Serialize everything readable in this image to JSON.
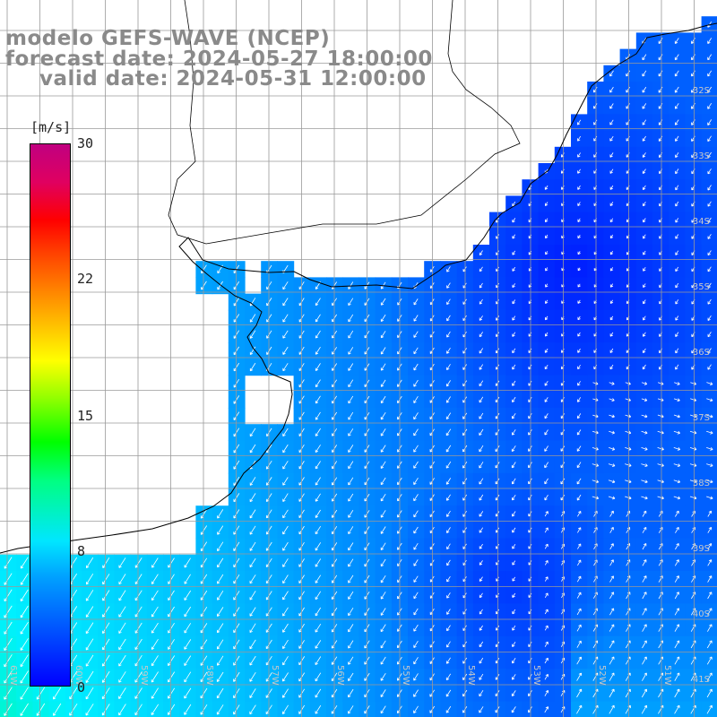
{
  "title": {
    "line1": "modelo GEFS-WAVE (NCEP)",
    "line2": "forecast date: 2024-05-27 18:00:00",
    "line3": "valid date: 2024-05-31 12:00:00"
  },
  "colorbar": {
    "unit": "[m/s]",
    "ticks": [
      "30",
      "22",
      "15",
      "8",
      "0"
    ],
    "tick_values": [
      30,
      22,
      15,
      8,
      0
    ],
    "min": 0,
    "max": 30
  },
  "lat_labels": [
    "32S",
    "33S",
    "34S",
    "35S",
    "36S",
    "37S",
    "38S",
    "39S",
    "40S",
    "41S"
  ],
  "lon_labels": [
    "61W",
    "60W",
    "59W",
    "58W",
    "57W",
    "56W",
    "55W",
    "54W",
    "53W",
    "52W",
    "51W",
    "50W"
  ],
  "colors": {
    "land": "#ffffff",
    "grid": "#9a9a9a",
    "coast": "#000000",
    "arrows": "#ffffff",
    "title_text": "#8a8a8a"
  },
  "field": {
    "variable": "wind speed and direction",
    "units": "m/s",
    "range_shown": [
      2,
      10
    ]
  }
}
